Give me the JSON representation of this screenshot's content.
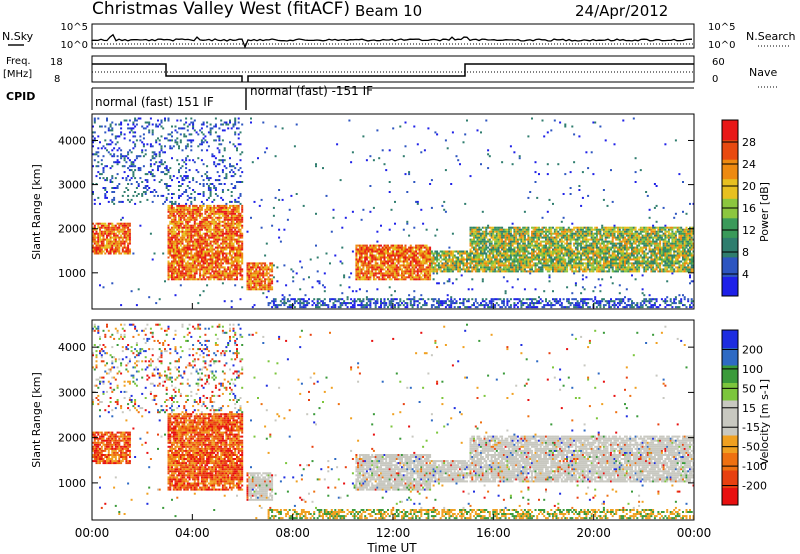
{
  "header": {
    "title": "Christmas Valley West (fitACF)",
    "beam": "Beam 10",
    "date": "24/Apr/2012"
  },
  "summary": {
    "left_label_nsky": "N.Sky",
    "nsky_ticks": [
      "10^5",
      "10^0"
    ],
    "right_label_nsearch": "N.Search",
    "nsearch_ticks": [
      "10^5",
      "10^0"
    ],
    "freq_label_1": "Freq.",
    "freq_label_2": "[MHz]",
    "freq_ticks": [
      "18",
      "8"
    ],
    "nave_label": "Nave",
    "nave_ticks": [
      "60",
      "0"
    ],
    "cpid_label": "CPID",
    "cpid_segments": [
      "normal (fast) 151 IF",
      "normal (fast) -151 IF"
    ]
  },
  "colors": {
    "power": [
      "#1e20e8",
      "#2d55c0",
      "#2f7d6e",
      "#3a9a5a",
      "#8cc63f",
      "#e8c020",
      "#ee8a10",
      "#e84a10",
      "#e81818"
    ],
    "velocity": [
      "#1e2de0",
      "#2e6ac4",
      "#3a9a3a",
      "#7cc63c",
      "#c8c8c0",
      "#c8c8c0",
      "#f0a020",
      "#ee7010",
      "#e84010",
      "#e81010"
    ]
  },
  "chart_data": [
    {
      "type": "heatmap",
      "panel": "power",
      "ylabel": "Slant Range [km]",
      "ylim": [
        180,
        4600
      ],
      "yticks": [
        "1000",
        "2000",
        "3000",
        "4000"
      ],
      "colorbar_label": "Power [dB]",
      "colorbar_ticks": [
        "28",
        "24",
        "20",
        "16",
        "12",
        "8",
        "4"
      ],
      "xlim_hours": [
        0,
        24
      ],
      "features": [
        {
          "t": [
            0.0,
            1.5
          ],
          "range": [
            1400,
            2100
          ],
          "level": "high"
        },
        {
          "t": [
            3.0,
            6.0
          ],
          "range": [
            800,
            2500
          ],
          "level": "high"
        },
        {
          "t": [
            6.1,
            7.2
          ],
          "range": [
            600,
            1200
          ],
          "level": "high"
        },
        {
          "t": [
            10.5,
            13.5
          ],
          "range": [
            800,
            1600
          ],
          "level": "high"
        },
        {
          "t": [
            13.0,
            15.0
          ],
          "range": [
            1000,
            1500
          ],
          "level": "medium"
        },
        {
          "t": [
            15.0,
            24.0
          ],
          "range": [
            1000,
            2000
          ],
          "level": "medium"
        }
      ]
    },
    {
      "type": "heatmap",
      "panel": "velocity",
      "ylabel": "Slant Range [km]",
      "ylim": [
        180,
        4600
      ],
      "yticks": [
        "1000",
        "2000",
        "3000",
        "4000"
      ],
      "colorbar_label": "Velocity [m s-1]",
      "colorbar_ticks": [
        "200",
        "100",
        "50",
        "15",
        "-15",
        "-50",
        "-100",
        "-200"
      ],
      "xlim_hours": [
        0,
        24
      ],
      "xticks": [
        "00:00",
        "04:00",
        "08:00",
        "12:00",
        "16:00",
        "20:00",
        "00:00"
      ],
      "xlabel": "Time UT"
    }
  ]
}
